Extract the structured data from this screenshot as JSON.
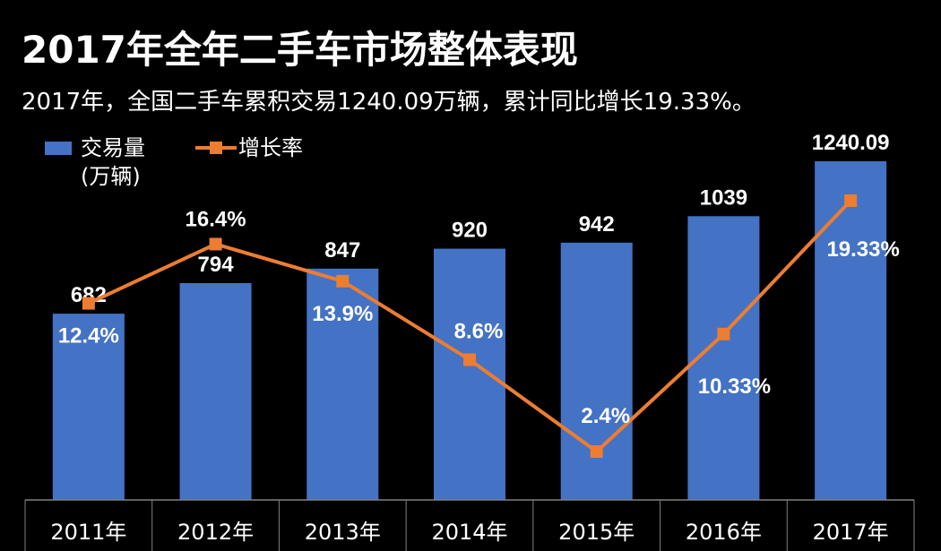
{
  "colors": {
    "bar": "#4472C4",
    "line": "#ED7D31",
    "background": "#000000",
    "text": "#FFFFFF",
    "axis": "#808080"
  },
  "chart_data": {
    "type": "bar",
    "title": "2017年全年二手车市场整体表现",
    "subtitle": "2017年，全国二手车累积交易1240.09万辆，累计同比增长19.33%。",
    "categories": [
      "2011年",
      "2012年",
      "2013年",
      "2014年",
      "2015年",
      "2016年",
      "2017年"
    ],
    "series": [
      {
        "name": "交易量（万辆）",
        "type": "bar",
        "values": [
          682,
          794,
          847,
          920,
          942,
          1039,
          1240.09
        ],
        "labels": [
          "682",
          "794",
          "847",
          "920",
          "942",
          "1039",
          "1240.09"
        ]
      },
      {
        "name": "增长率",
        "type": "line",
        "values": [
          12.4,
          16.4,
          13.9,
          8.6,
          2.4,
          10.33,
          19.33
        ],
        "labels": [
          "12.4%",
          "16.4%",
          "13.9%",
          "8.6%",
          "2.4%",
          "10.33%",
          "19.33%"
        ]
      }
    ],
    "legend": {
      "position": "top-left",
      "bar_label_line1": "交易量",
      "bar_label_line2": "(万辆)",
      "line_label": "增长率"
    },
    "grid": false
  }
}
